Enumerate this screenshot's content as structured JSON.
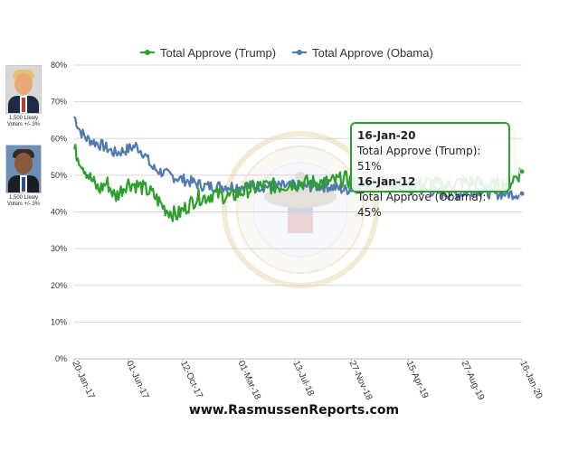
{
  "chart_data": {
    "type": "line",
    "title": "",
    "xlabel": "",
    "ylabel": "",
    "y_axis_format": "percent",
    "ylim": [
      0,
      80
    ],
    "yticks": [
      0,
      10,
      20,
      30,
      40,
      50,
      60,
      70,
      80
    ],
    "ytick_labels": [
      "0%",
      "10%",
      "20%",
      "30%",
      "40%",
      "50%",
      "60%",
      "70%",
      "80%"
    ],
    "x_tick_labels": [
      "20-Jan-17",
      "01-Jun-17",
      "12-Oct-17",
      "01-Mar-18",
      "13-Jul-18",
      "27-Nov-18",
      "15-Apr-19",
      "27-Aug-19",
      "16-Jan-20"
    ],
    "x_tick_positions": [
      0,
      132,
      264,
      404,
      538,
      675,
      814,
      948,
      1091
    ],
    "x_range": [
      0,
      1091
    ],
    "grid": true,
    "legend_position": "top-center",
    "series": [
      {
        "name": "Total Approve (Trump)",
        "color": "#2ca02c",
        "marker_color": "#2ca02c",
        "x": [
          0,
          20,
          40,
          60,
          80,
          100,
          130,
          160,
          190,
          220,
          250,
          280,
          300,
          320,
          340,
          380,
          420,
          460,
          500,
          540,
          580,
          620,
          660,
          700,
          740,
          780,
          820,
          860,
          900,
          940,
          980,
          1020,
          1060,
          1080,
          1091
        ],
        "values": [
          57,
          53,
          49,
          46,
          48,
          44,
          48,
          47,
          45,
          41,
          39,
          42,
          44,
          44,
          45,
          44,
          46,
          47,
          47,
          48,
          48,
          48,
          49,
          47,
          48,
          48,
          47,
          48,
          47,
          48,
          48,
          47,
          48,
          50,
          51
        ]
      },
      {
        "name": "Total Approve (Obama)",
        "color": "#4f79b0",
        "marker_color": "#4f79b0",
        "x": [
          0,
          15,
          30,
          50,
          70,
          100,
          130,
          150,
          170,
          190,
          210,
          230,
          260,
          290,
          320,
          350,
          380,
          420,
          460,
          500,
          540,
          580,
          620,
          660,
          700,
          740,
          780,
          820,
          860,
          900,
          940,
          980,
          1020,
          1060,
          1091
        ],
        "values": [
          66,
          62,
          60,
          59,
          58,
          56,
          57,
          58,
          56,
          52,
          51,
          50,
          49,
          48,
          47,
          47,
          47,
          47,
          47,
          47,
          47,
          47,
          47,
          46,
          47,
          47,
          47,
          46,
          46,
          45,
          45,
          46,
          45,
          45,
          45
        ]
      }
    ]
  },
  "tooltip": {
    "date_1": "16-Jan-20",
    "line_1": "Total Approve (Trump): 51%",
    "date_2": "16-Jan-12",
    "line_2": "Total Approve (Obama): 45%"
  },
  "portraits": {
    "trump": {
      "caption": "1,500 Likely Voters +/- 3%"
    },
    "obama": {
      "caption": "1,500 Likely Voters +/- 3%"
    }
  },
  "watermark": {
    "text": "SEAL OF THE PRESIDENT OF THE UNITED STATES"
  },
  "footer": {
    "url": "www.RasmussenReports.com"
  }
}
